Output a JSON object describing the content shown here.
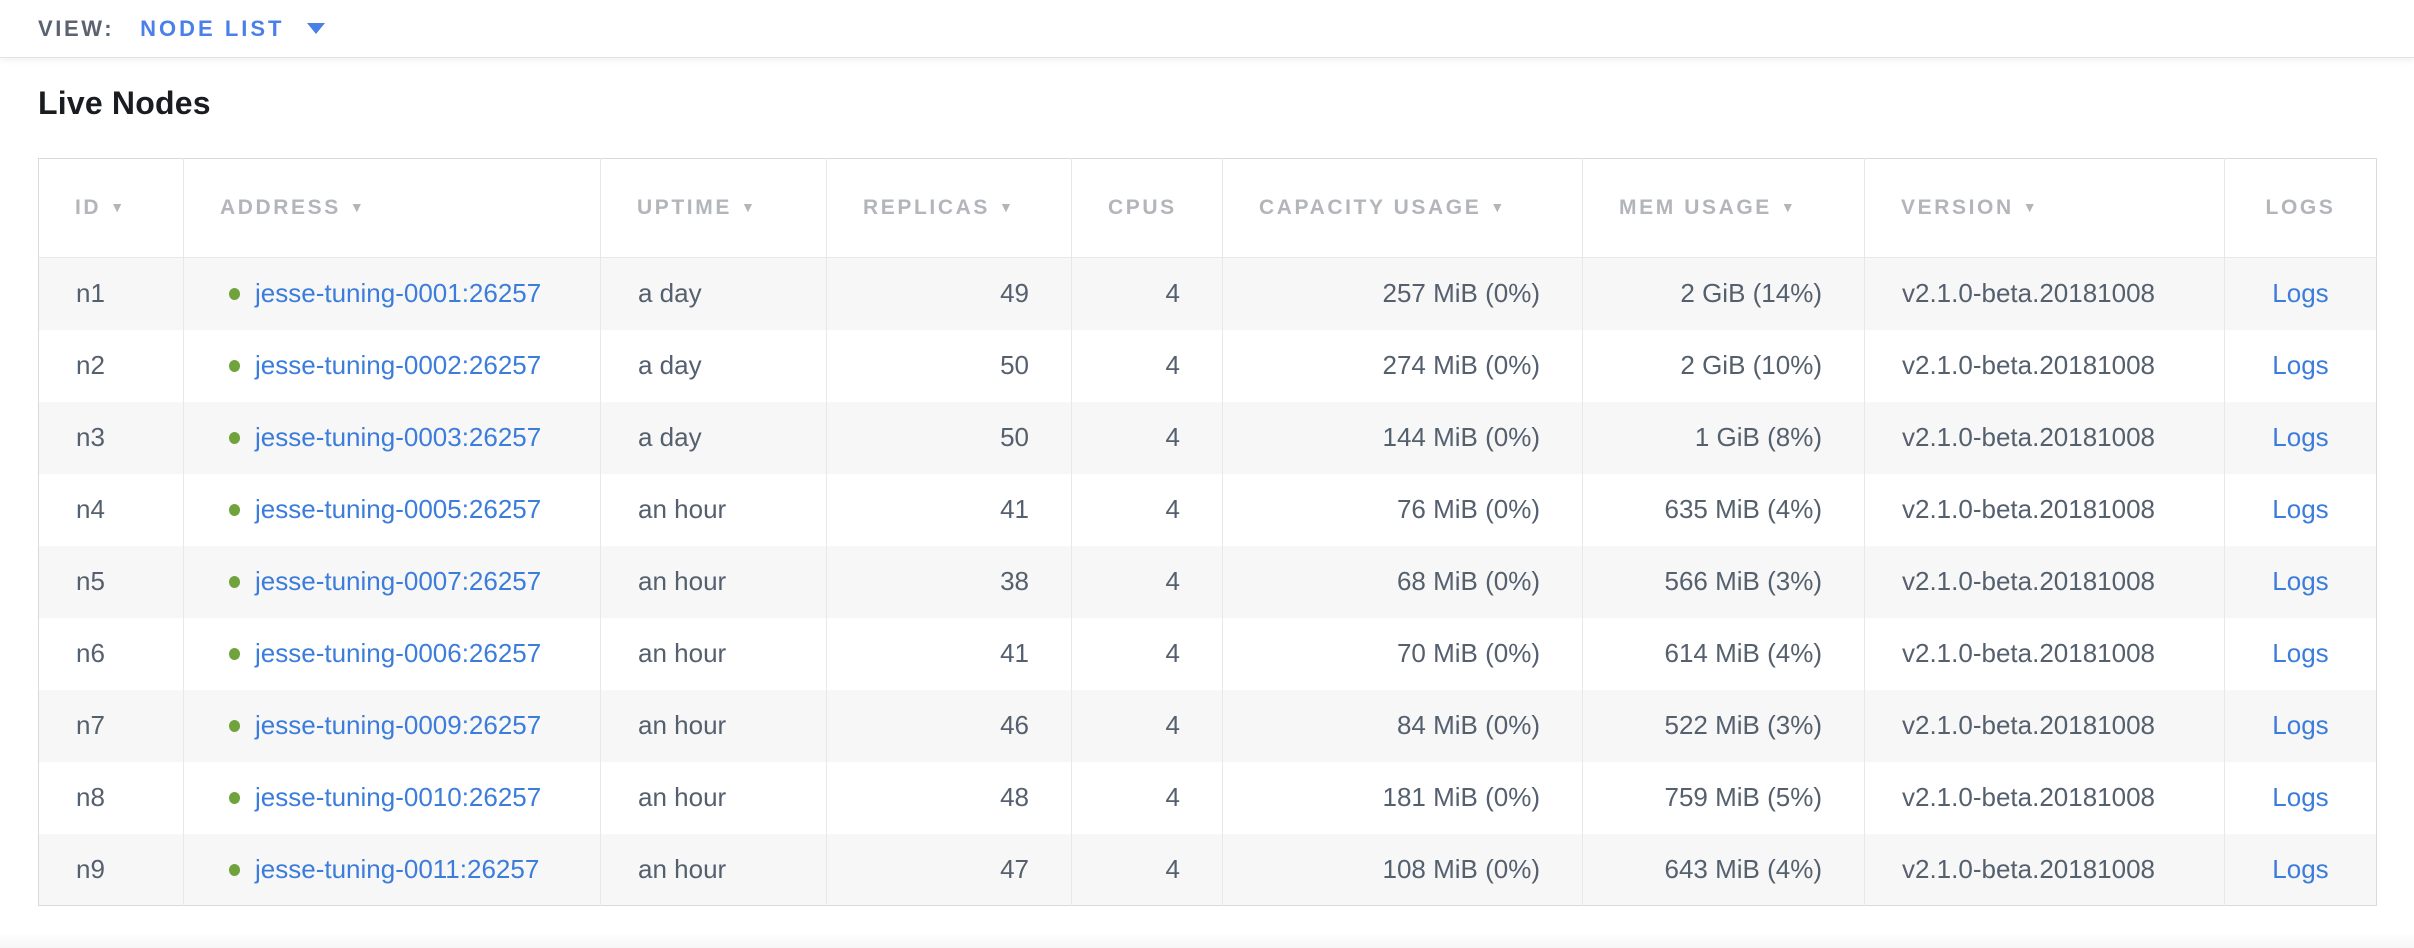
{
  "view_bar": {
    "label": "VIEW:",
    "selected": "NODE LIST"
  },
  "page": {
    "title": "Live Nodes"
  },
  "colors": {
    "link_blue": "#3c7cdb",
    "dropdown_blue": "#4a80e8",
    "status_live_green": "#71a33c",
    "header_gray": "#b2b5ba",
    "cell_text": "#55606e",
    "row_stripe": "#f7f7f7"
  },
  "table": {
    "columns": [
      {
        "key": "id",
        "label": "ID",
        "sortable": true,
        "align": "left"
      },
      {
        "key": "address",
        "label": "ADDRESS",
        "sortable": true,
        "align": "left"
      },
      {
        "key": "uptime",
        "label": "UPTIME",
        "sortable": true,
        "align": "left"
      },
      {
        "key": "replicas",
        "label": "REPLICAS",
        "sortable": true,
        "align": "right"
      },
      {
        "key": "cpus",
        "label": "CPUS",
        "sortable": false,
        "align": "right"
      },
      {
        "key": "capacity",
        "label": "CAPACITY USAGE",
        "sortable": true,
        "align": "right"
      },
      {
        "key": "mem",
        "label": "MEM USAGE",
        "sortable": true,
        "align": "right"
      },
      {
        "key": "version",
        "label": "VERSION",
        "sortable": true,
        "align": "left"
      },
      {
        "key": "logs",
        "label": "LOGS",
        "sortable": false,
        "align": "center"
      }
    ],
    "rows": [
      {
        "id": "n1",
        "status": "live",
        "address": "jesse-tuning-0001:26257",
        "uptime": "a day",
        "replicas": "49",
        "cpus": "4",
        "capacity": "257 MiB (0%)",
        "mem": "2 GiB (14%)",
        "version": "v2.1.0-beta.20181008",
        "logs": "Logs"
      },
      {
        "id": "n2",
        "status": "live",
        "address": "jesse-tuning-0002:26257",
        "uptime": "a day",
        "replicas": "50",
        "cpus": "4",
        "capacity": "274 MiB (0%)",
        "mem": "2 GiB (10%)",
        "version": "v2.1.0-beta.20181008",
        "logs": "Logs"
      },
      {
        "id": "n3",
        "status": "live",
        "address": "jesse-tuning-0003:26257",
        "uptime": "a day",
        "replicas": "50",
        "cpus": "4",
        "capacity": "144 MiB (0%)",
        "mem": "1 GiB (8%)",
        "version": "v2.1.0-beta.20181008",
        "logs": "Logs"
      },
      {
        "id": "n4",
        "status": "live",
        "address": "jesse-tuning-0005:26257",
        "uptime": "an hour",
        "replicas": "41",
        "cpus": "4",
        "capacity": "76 MiB (0%)",
        "mem": "635 MiB (4%)",
        "version": "v2.1.0-beta.20181008",
        "logs": "Logs"
      },
      {
        "id": "n5",
        "status": "live",
        "address": "jesse-tuning-0007:26257",
        "uptime": "an hour",
        "replicas": "38",
        "cpus": "4",
        "capacity": "68 MiB (0%)",
        "mem": "566 MiB (3%)",
        "version": "v2.1.0-beta.20181008",
        "logs": "Logs"
      },
      {
        "id": "n6",
        "status": "live",
        "address": "jesse-tuning-0006:26257",
        "uptime": "an hour",
        "replicas": "41",
        "cpus": "4",
        "capacity": "70 MiB (0%)",
        "mem": "614 MiB (4%)",
        "version": "v2.1.0-beta.20181008",
        "logs": "Logs"
      },
      {
        "id": "n7",
        "status": "live",
        "address": "jesse-tuning-0009:26257",
        "uptime": "an hour",
        "replicas": "46",
        "cpus": "4",
        "capacity": "84 MiB (0%)",
        "mem": "522 MiB (3%)",
        "version": "v2.1.0-beta.20181008",
        "logs": "Logs"
      },
      {
        "id": "n8",
        "status": "live",
        "address": "jesse-tuning-0010:26257",
        "uptime": "an hour",
        "replicas": "48",
        "cpus": "4",
        "capacity": "181 MiB (0%)",
        "mem": "759 MiB (5%)",
        "version": "v2.1.0-beta.20181008",
        "logs": "Logs"
      },
      {
        "id": "n9",
        "status": "live",
        "address": "jesse-tuning-0011:26257",
        "uptime": "an hour",
        "replicas": "47",
        "cpus": "4",
        "capacity": "108 MiB (0%)",
        "mem": "643 MiB (4%)",
        "version": "v2.1.0-beta.20181008",
        "logs": "Logs"
      }
    ]
  }
}
